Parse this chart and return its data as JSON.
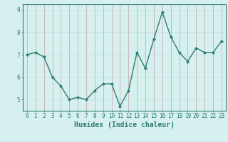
{
  "x": [
    0,
    1,
    2,
    3,
    4,
    5,
    6,
    7,
    8,
    9,
    10,
    11,
    12,
    13,
    14,
    15,
    16,
    17,
    18,
    19,
    20,
    21,
    22,
    23
  ],
  "y": [
    7.0,
    7.1,
    6.9,
    6.0,
    5.6,
    5.0,
    5.1,
    5.0,
    5.4,
    5.7,
    5.7,
    4.7,
    5.4,
    7.1,
    6.4,
    7.7,
    8.9,
    7.8,
    7.1,
    6.7,
    7.3,
    7.1,
    7.1,
    7.6
  ],
  "line_color": "#2d7d6e",
  "marker": "D",
  "marker_size": 2.0,
  "bg_color": "#d6f0f0",
  "grid_color": "#c0dede",
  "xlabel": "Humidex (Indice chaleur)",
  "ylim": [
    4.5,
    9.25
  ],
  "xlim": [
    -0.5,
    23.5
  ],
  "yticks": [
    5,
    6,
    7,
    8,
    9
  ],
  "xticks": [
    0,
    1,
    2,
    3,
    4,
    5,
    6,
    7,
    8,
    9,
    10,
    11,
    12,
    13,
    14,
    15,
    16,
    17,
    18,
    19,
    20,
    21,
    22,
    23
  ],
  "tick_label_fontsize": 5.5,
  "xlabel_fontsize": 7,
  "line_width": 1.0,
  "spine_color": "#2d7d6e",
  "tick_color": "#c87070"
}
